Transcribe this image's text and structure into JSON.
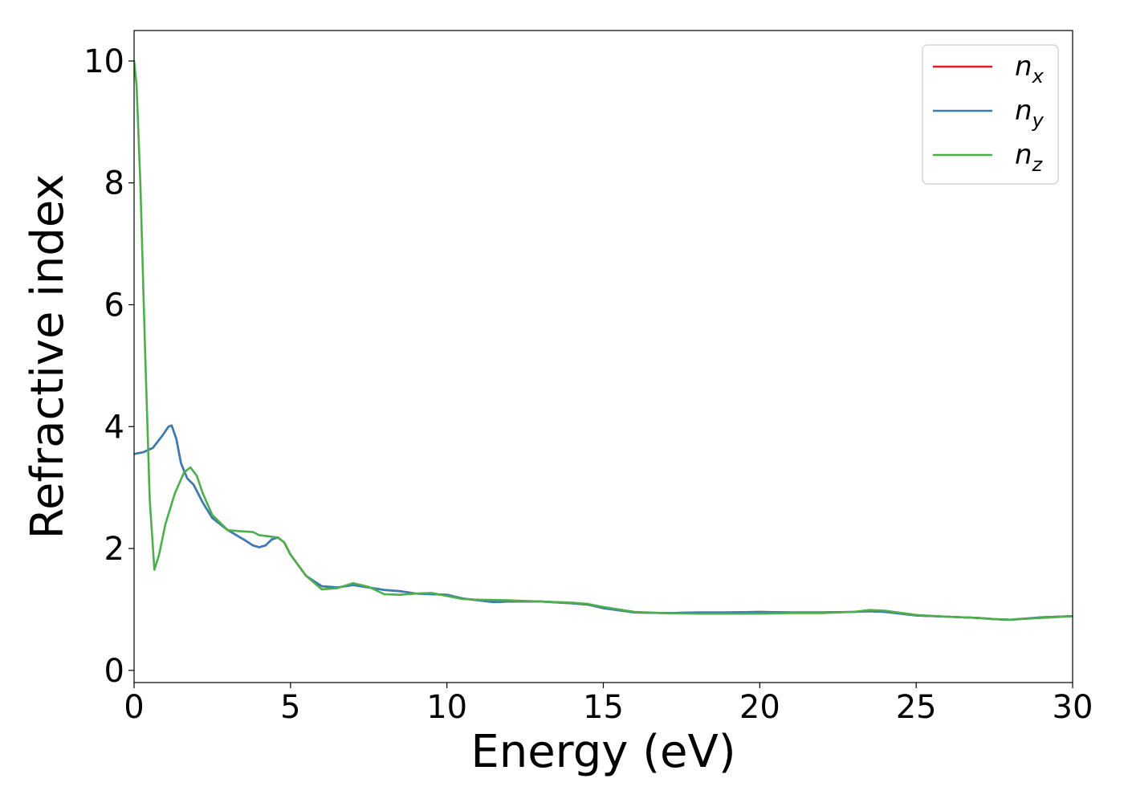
{
  "chart_data": {
    "type": "line",
    "title": "",
    "xlabel": "Energy (eV)",
    "ylabel": "Refractive index",
    "xlim": [
      0,
      30
    ],
    "ylim": [
      -0.2,
      10.5
    ],
    "xticks": [
      0,
      5,
      10,
      15,
      20,
      25,
      30
    ],
    "yticks": [
      0,
      2,
      4,
      6,
      8,
      10
    ],
    "xtick_labels": [
      "0",
      "5",
      "10",
      "15",
      "20",
      "25",
      "30"
    ],
    "ytick_labels": [
      "0",
      "2",
      "4",
      "6",
      "8",
      "10"
    ],
    "grid": false,
    "legend_position": "top-right",
    "series": [
      {
        "name": "n_x",
        "label_base": "n",
        "label_sub": "x",
        "color": "#e41a1c",
        "x": [
          0,
          0.3,
          0.6,
          0.9,
          1.1,
          1.2,
          1.35,
          1.5,
          1.7,
          1.9,
          2.2,
          2.5,
          3.0,
          3.5,
          3.8,
          4.0,
          4.2,
          4.4,
          4.6,
          4.8,
          5.0,
          5.5,
          6.0,
          6.5,
          7.0,
          7.5,
          8.0,
          8.5,
          9.0,
          9.5,
          10.0,
          10.5,
          11.0,
          11.5,
          12.0,
          13.0,
          14.0,
          14.5,
          15.0,
          16.0,
          17.0,
          18.0,
          19.0,
          20.0,
          21.0,
          22.0,
          23.0,
          23.5,
          24.0,
          25.0,
          26.0,
          27.0,
          27.5,
          28.0,
          29.0,
          30.0
        ],
        "y": [
          3.55,
          3.58,
          3.65,
          3.85,
          4.0,
          4.02,
          3.8,
          3.4,
          3.15,
          3.05,
          2.75,
          2.5,
          2.3,
          2.15,
          2.05,
          2.02,
          2.05,
          2.15,
          2.18,
          2.1,
          1.9,
          1.55,
          1.38,
          1.36,
          1.4,
          1.36,
          1.32,
          1.3,
          1.26,
          1.25,
          1.24,
          1.18,
          1.15,
          1.12,
          1.13,
          1.13,
          1.1,
          1.08,
          1.02,
          0.95,
          0.94,
          0.95,
          0.95,
          0.96,
          0.95,
          0.95,
          0.96,
          0.97,
          0.96,
          0.9,
          0.88,
          0.86,
          0.84,
          0.83,
          0.87,
          0.89
        ]
      },
      {
        "name": "n_y",
        "label_base": "n",
        "label_sub": "y",
        "color": "#377eb8",
        "x": [
          0,
          0.3,
          0.6,
          0.9,
          1.1,
          1.2,
          1.35,
          1.5,
          1.7,
          1.9,
          2.2,
          2.5,
          3.0,
          3.5,
          3.8,
          4.0,
          4.2,
          4.4,
          4.6,
          4.8,
          5.0,
          5.5,
          6.0,
          6.5,
          7.0,
          7.5,
          8.0,
          8.5,
          9.0,
          9.5,
          10.0,
          10.5,
          11.0,
          11.5,
          12.0,
          13.0,
          14.0,
          14.5,
          15.0,
          16.0,
          17.0,
          18.0,
          19.0,
          20.0,
          21.0,
          22.0,
          23.0,
          23.5,
          24.0,
          25.0,
          26.0,
          27.0,
          27.5,
          28.0,
          29.0,
          30.0
        ],
        "y": [
          3.55,
          3.58,
          3.65,
          3.85,
          4.0,
          4.02,
          3.8,
          3.4,
          3.15,
          3.05,
          2.75,
          2.5,
          2.3,
          2.15,
          2.05,
          2.02,
          2.05,
          2.15,
          2.18,
          2.1,
          1.9,
          1.55,
          1.38,
          1.36,
          1.4,
          1.36,
          1.32,
          1.3,
          1.26,
          1.25,
          1.24,
          1.18,
          1.15,
          1.12,
          1.13,
          1.13,
          1.1,
          1.08,
          1.02,
          0.95,
          0.94,
          0.95,
          0.95,
          0.96,
          0.95,
          0.95,
          0.96,
          0.97,
          0.96,
          0.9,
          0.88,
          0.86,
          0.84,
          0.83,
          0.87,
          0.89
        ]
      },
      {
        "name": "n_z",
        "label_base": "n",
        "label_sub": "z",
        "color": "#4daf4a",
        "x": [
          0,
          0.08,
          0.2,
          0.35,
          0.5,
          0.65,
          0.8,
          1.0,
          1.3,
          1.6,
          1.8,
          2.0,
          2.2,
          2.5,
          3.0,
          3.5,
          3.8,
          4.0,
          4.3,
          4.6,
          4.8,
          5.0,
          5.5,
          6.0,
          6.5,
          7.0,
          7.5,
          8.0,
          8.5,
          9.0,
          9.5,
          10.0,
          10.5,
          11.0,
          12.0,
          13.0,
          14.0,
          14.5,
          15.0,
          16.0,
          17.0,
          18.0,
          19.0,
          20.0,
          21.0,
          22.0,
          23.0,
          23.5,
          24.0,
          25.0,
          26.0,
          27.0,
          27.5,
          28.0,
          29.0,
          30.0
        ],
        "y": [
          10.0,
          9.6,
          8.0,
          5.3,
          2.8,
          1.65,
          1.9,
          2.4,
          2.9,
          3.25,
          3.33,
          3.2,
          2.9,
          2.55,
          2.3,
          2.28,
          2.27,
          2.22,
          2.2,
          2.18,
          2.1,
          1.9,
          1.55,
          1.33,
          1.35,
          1.43,
          1.37,
          1.25,
          1.24,
          1.26,
          1.27,
          1.22,
          1.17,
          1.16,
          1.15,
          1.13,
          1.11,
          1.09,
          1.04,
          0.96,
          0.94,
          0.93,
          0.93,
          0.93,
          0.94,
          0.94,
          0.96,
          0.99,
          0.98,
          0.91,
          0.88,
          0.86,
          0.84,
          0.83,
          0.86,
          0.89
        ]
      }
    ]
  }
}
